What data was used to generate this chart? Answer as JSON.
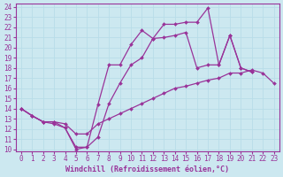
{
  "xlabel": "Windchill (Refroidissement éolien,°C)",
  "xlim": [
    -0.5,
    23.5
  ],
  "ylim": [
    9.8,
    24.3
  ],
  "xticks": [
    0,
    1,
    2,
    3,
    4,
    5,
    6,
    7,
    8,
    9,
    10,
    11,
    12,
    13,
    14,
    15,
    16,
    17,
    18,
    19,
    20,
    21,
    22,
    23
  ],
  "yticks": [
    10,
    11,
    12,
    13,
    14,
    15,
    16,
    17,
    18,
    19,
    20,
    21,
    22,
    23,
    24
  ],
  "line_color": "#993399",
  "bg_color": "#cce8f0",
  "grid_color": "#b8dde8",
  "line1_x": [
    0,
    1,
    2,
    3,
    4,
    5,
    6,
    7,
    8,
    9,
    10,
    11,
    12,
    13,
    14,
    15,
    16,
    17,
    18,
    19,
    20,
    21
  ],
  "line1_y": [
    14.0,
    13.3,
    12.7,
    12.7,
    12.1,
    10.0,
    10.2,
    14.4,
    18.3,
    18.3,
    20.3,
    21.7,
    20.9,
    22.3,
    22.3,
    22.5,
    22.5,
    23.9,
    18.3,
    21.2,
    18.0,
    17.6
  ],
  "line2_x": [
    0,
    1,
    2,
    3,
    4,
    5,
    6,
    7,
    8,
    9,
    10,
    11,
    12,
    13,
    14,
    15,
    16,
    17,
    18,
    19,
    20,
    21,
    22,
    23
  ],
  "line2_y": [
    14.0,
    13.3,
    12.7,
    12.7,
    12.5,
    11.5,
    11.5,
    12.5,
    13.0,
    13.5,
    14.0,
    14.5,
    15.0,
    15.5,
    16.0,
    16.2,
    16.5,
    16.8,
    17.0,
    17.5,
    17.5,
    17.8,
    17.5,
    16.5
  ],
  "line3_x": [
    0,
    1,
    2,
    3,
    4,
    5,
    6,
    7,
    8,
    9,
    10,
    11,
    12,
    13,
    14,
    15,
    16,
    17,
    18,
    19,
    20,
    21
  ],
  "line3_y": [
    14.0,
    13.3,
    12.7,
    12.5,
    12.1,
    10.2,
    10.2,
    11.2,
    14.5,
    16.5,
    18.3,
    19.0,
    20.9,
    21.0,
    21.2,
    21.5,
    18.0,
    18.3,
    18.3,
    21.2,
    18.0,
    17.6
  ],
  "marker": "D",
  "markersize": 2.0,
  "linewidth": 0.9
}
